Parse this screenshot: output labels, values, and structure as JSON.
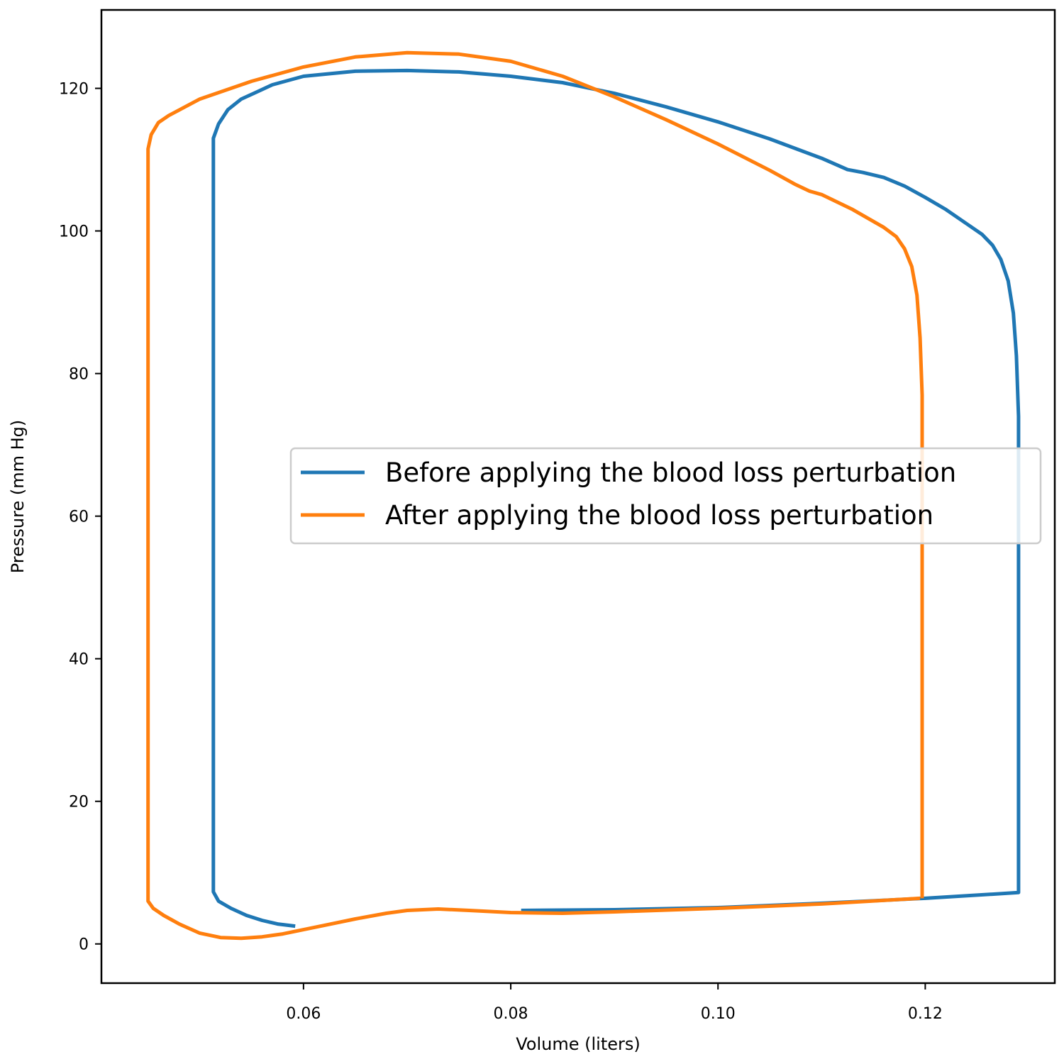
{
  "chart_data": {
    "type": "line",
    "xlabel": "Volume (liters)",
    "ylabel": "Pressure (mm Hg)",
    "xlim": [
      0.0405,
      0.1325
    ],
    "ylim": [
      -5.5,
      131
    ],
    "x_ticks": [
      0.06,
      0.08,
      0.1,
      0.12
    ],
    "x_tick_labels": [
      "0.06",
      "0.08",
      "0.10",
      "0.12"
    ],
    "y_ticks": [
      0,
      20,
      40,
      60,
      80,
      100,
      120
    ],
    "y_tick_labels": [
      "0",
      "20",
      "40",
      "60",
      "80",
      "100",
      "120"
    ],
    "grid": false,
    "legend_position": "center-right",
    "series": [
      {
        "name": "Before applying the blood loss perturbation",
        "color": "#1f77b4",
        "points": [
          [
            0.081,
            4.7
          ],
          [
            0.09,
            4.8
          ],
          [
            0.1,
            5.1
          ],
          [
            0.11,
            5.7
          ],
          [
            0.12,
            6.4
          ],
          [
            0.129,
            7.2
          ],
          [
            0.129,
            30.0
          ],
          [
            0.129,
            60.0
          ],
          [
            0.129,
            74.0
          ],
          [
            0.1288,
            82.5
          ],
          [
            0.1285,
            88.5
          ],
          [
            0.128,
            93.0
          ],
          [
            0.1273,
            96.0
          ],
          [
            0.1265,
            98.0
          ],
          [
            0.1255,
            99.5
          ],
          [
            0.124,
            101.0
          ],
          [
            0.122,
            103.0
          ],
          [
            0.12,
            104.7
          ],
          [
            0.118,
            106.3
          ],
          [
            0.116,
            107.5
          ],
          [
            0.114,
            108.2
          ],
          [
            0.1125,
            108.6
          ],
          [
            0.11,
            110.2
          ],
          [
            0.105,
            112.9
          ],
          [
            0.1,
            115.3
          ],
          [
            0.095,
            117.4
          ],
          [
            0.09,
            119.3
          ],
          [
            0.085,
            120.8
          ],
          [
            0.08,
            121.7
          ],
          [
            0.075,
            122.3
          ],
          [
            0.07,
            122.5
          ],
          [
            0.065,
            122.4
          ],
          [
            0.06,
            121.7
          ],
          [
            0.057,
            120.5
          ],
          [
            0.0555,
            119.5
          ],
          [
            0.054,
            118.5
          ],
          [
            0.0527,
            117.0
          ],
          [
            0.0518,
            115.0
          ],
          [
            0.0513,
            113.0
          ],
          [
            0.0513,
            100.0
          ],
          [
            0.0513,
            60.0
          ],
          [
            0.0513,
            20.0
          ],
          [
            0.0513,
            7.3
          ],
          [
            0.0518,
            6.0
          ],
          [
            0.053,
            5.0
          ],
          [
            0.0545,
            4.0
          ],
          [
            0.056,
            3.3
          ],
          [
            0.0575,
            2.8
          ],
          [
            0.0592,
            2.5
          ]
        ]
      },
      {
        "name": "After applying the blood loss perturbation",
        "color": "#ff7f0e",
        "points": [
          [
            0.1195,
            6.4
          ],
          [
            0.11,
            5.6
          ],
          [
            0.1,
            5.0
          ],
          [
            0.09,
            4.5
          ],
          [
            0.085,
            4.3
          ],
          [
            0.08,
            4.4
          ],
          [
            0.076,
            4.7
          ],
          [
            0.073,
            4.9
          ],
          [
            0.07,
            4.7
          ],
          [
            0.068,
            4.3
          ],
          [
            0.065,
            3.5
          ],
          [
            0.062,
            2.6
          ],
          [
            0.06,
            2.0
          ],
          [
            0.058,
            1.4
          ],
          [
            0.056,
            1.0
          ],
          [
            0.054,
            0.8
          ],
          [
            0.052,
            0.9
          ],
          [
            0.05,
            1.5
          ],
          [
            0.048,
            2.8
          ],
          [
            0.0465,
            4.0
          ],
          [
            0.0455,
            5.0
          ],
          [
            0.045,
            6.0
          ],
          [
            0.045,
            20.0
          ],
          [
            0.045,
            60.0
          ],
          [
            0.045,
            100.0
          ],
          [
            0.045,
            111.5
          ],
          [
            0.0453,
            113.5
          ],
          [
            0.046,
            115.2
          ],
          [
            0.047,
            116.2
          ],
          [
            0.05,
            118.5
          ],
          [
            0.055,
            121.0
          ],
          [
            0.06,
            123.0
          ],
          [
            0.065,
            124.4
          ],
          [
            0.07,
            125.0
          ],
          [
            0.075,
            124.8
          ],
          [
            0.08,
            123.8
          ],
          [
            0.085,
            121.7
          ],
          [
            0.09,
            118.8
          ],
          [
            0.095,
            115.6
          ],
          [
            0.1,
            112.2
          ],
          [
            0.105,
            108.5
          ],
          [
            0.1075,
            106.5
          ],
          [
            0.1088,
            105.6
          ],
          [
            0.11,
            105.1
          ],
          [
            0.113,
            103.0
          ],
          [
            0.116,
            100.5
          ],
          [
            0.1172,
            99.2
          ],
          [
            0.118,
            97.5
          ],
          [
            0.1187,
            95.0
          ],
          [
            0.1192,
            91.0
          ],
          [
            0.1195,
            85.0
          ],
          [
            0.1197,
            77.0
          ],
          [
            0.1197,
            60.0
          ],
          [
            0.1197,
            30.0
          ],
          [
            0.1197,
            6.4
          ]
        ]
      }
    ]
  }
}
